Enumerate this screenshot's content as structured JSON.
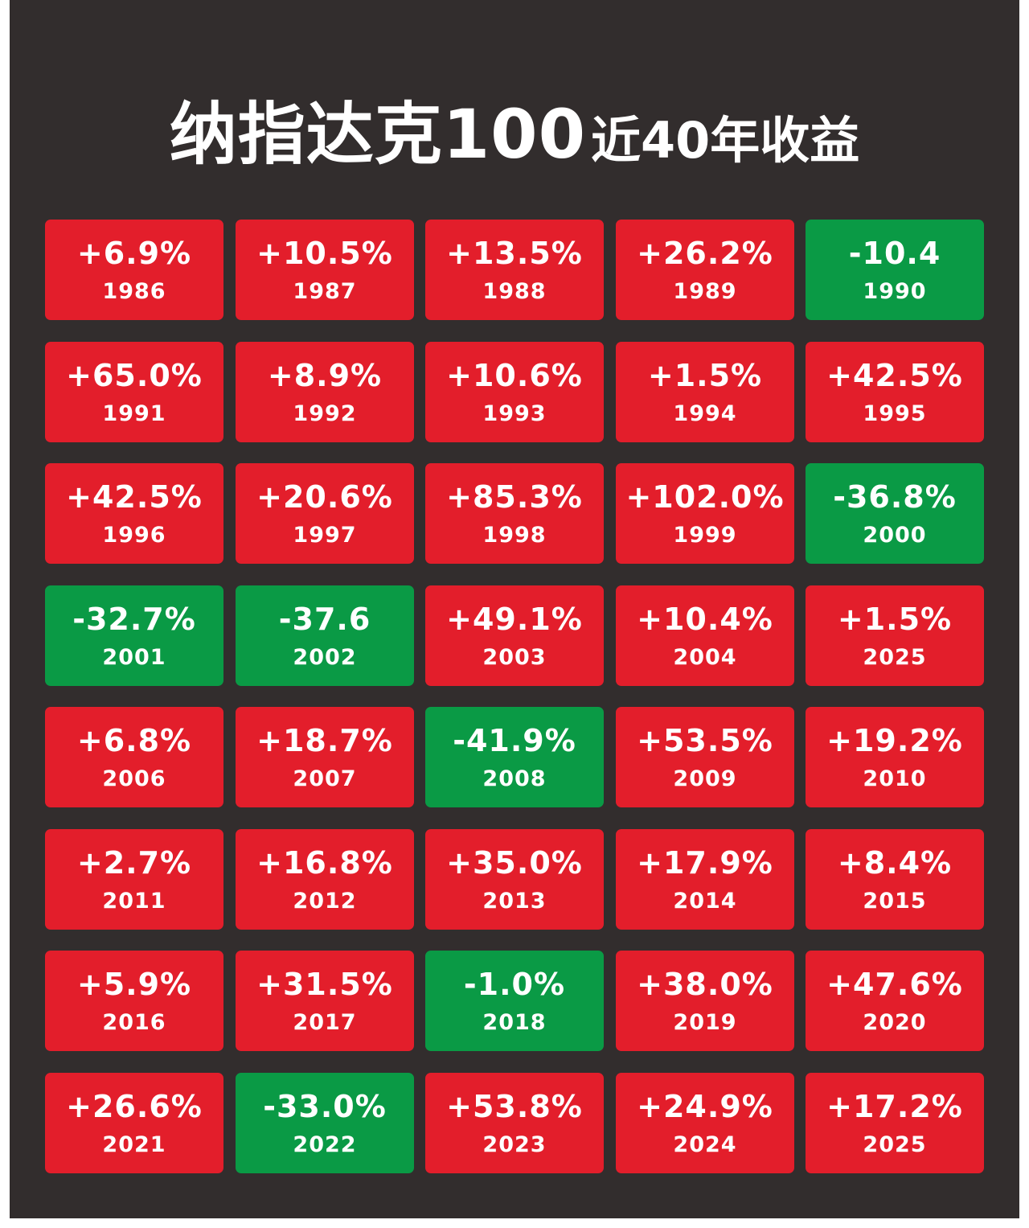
{
  "title": {
    "main": "纳指达克100",
    "sub": "近40年收益"
  },
  "colors": {
    "background": "#322d2d",
    "positive": "#e31e2b",
    "negative": "#0a9a45",
    "text": "#ffffff"
  },
  "chart_data": {
    "type": "table",
    "title": "纳指达克100近40年收益",
    "columns": 5,
    "cells": [
      {
        "year": "1986",
        "label": "+6.9%",
        "value": 6.9
      },
      {
        "year": "1987",
        "label": "+10.5%",
        "value": 10.5
      },
      {
        "year": "1988",
        "label": "+13.5%",
        "value": 13.5
      },
      {
        "year": "1989",
        "label": "+26.2%",
        "value": 26.2
      },
      {
        "year": "1990",
        "label": "-10.4",
        "value": -10.4
      },
      {
        "year": "1991",
        "label": "+65.0%",
        "value": 65.0
      },
      {
        "year": "1992",
        "label": "+8.9%",
        "value": 8.9
      },
      {
        "year": "1993",
        "label": "+10.6%",
        "value": 10.6
      },
      {
        "year": "1994",
        "label": "+1.5%",
        "value": 1.5
      },
      {
        "year": "1995",
        "label": "+42.5%",
        "value": 42.5
      },
      {
        "year": "1996",
        "label": "+42.5%",
        "value": 42.5
      },
      {
        "year": "1997",
        "label": "+20.6%",
        "value": 20.6
      },
      {
        "year": "1998",
        "label": "+85.3%",
        "value": 85.3
      },
      {
        "year": "1999",
        "label": "+102.0%",
        "value": 102.0
      },
      {
        "year": "2000",
        "label": "-36.8%",
        "value": -36.8
      },
      {
        "year": "2001",
        "label": "-32.7%",
        "value": -32.7
      },
      {
        "year": "2002",
        "label": "-37.6",
        "value": -37.6
      },
      {
        "year": "2003",
        "label": "+49.1%",
        "value": 49.1
      },
      {
        "year": "2004",
        "label": "+10.4%",
        "value": 10.4
      },
      {
        "year": "2025",
        "label": "+1.5%",
        "value": 1.5
      },
      {
        "year": "2006",
        "label": "+6.8%",
        "value": 6.8
      },
      {
        "year": "2007",
        "label": "+18.7%",
        "value": 18.7
      },
      {
        "year": "2008",
        "label": "-41.9%",
        "value": -41.9
      },
      {
        "year": "2009",
        "label": "+53.5%",
        "value": 53.5
      },
      {
        "year": "2010",
        "label": "+19.2%",
        "value": 19.2
      },
      {
        "year": "2011",
        "label": "+2.7%",
        "value": 2.7
      },
      {
        "year": "2012",
        "label": "+16.8%",
        "value": 16.8
      },
      {
        "year": "2013",
        "label": "+35.0%",
        "value": 35.0
      },
      {
        "year": "2014",
        "label": "+17.9%",
        "value": 17.9
      },
      {
        "year": "2015",
        "label": "+8.4%",
        "value": 8.4
      },
      {
        "year": "2016",
        "label": "+5.9%",
        "value": 5.9
      },
      {
        "year": "2017",
        "label": "+31.5%",
        "value": 31.5
      },
      {
        "year": "2018",
        "label": "-1.0%",
        "value": -1.0
      },
      {
        "year": "2019",
        "label": "+38.0%",
        "value": 38.0
      },
      {
        "year": "2020",
        "label": "+47.6%",
        "value": 47.6
      },
      {
        "year": "2021",
        "label": "+26.6%",
        "value": 26.6
      },
      {
        "year": "2022",
        "label": "-33.0%",
        "value": -33.0
      },
      {
        "year": "2023",
        "label": "+53.8%",
        "value": 53.8
      },
      {
        "year": "2024",
        "label": "+24.9%",
        "value": 24.9
      },
      {
        "year": "2025",
        "label": "+17.2%",
        "value": 17.2
      }
    ]
  }
}
